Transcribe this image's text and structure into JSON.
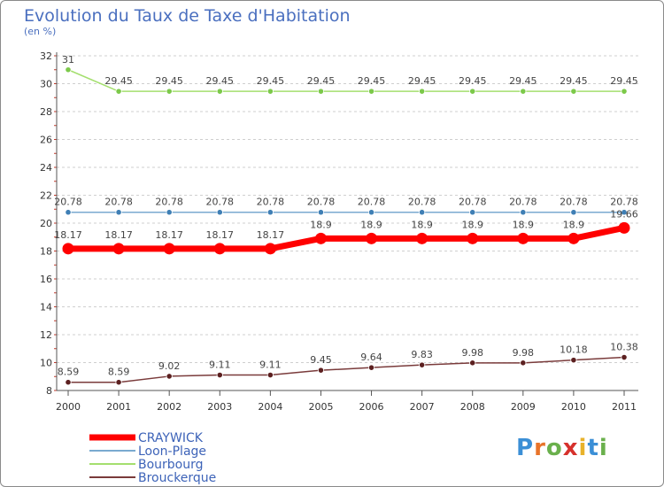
{
  "header": {
    "title": "Evolution du Taux de Taxe d'Habitation",
    "unit": "(en %)"
  },
  "logo": {
    "text": "Proxiti"
  },
  "chart_data": {
    "type": "line",
    "title": "Evolution du Taux de Taxe d'Habitation",
    "ylabel": "(en %)",
    "xlabel": "",
    "categories": [
      "2000",
      "2001",
      "2002",
      "2003",
      "2004",
      "2005",
      "2006",
      "2007",
      "2008",
      "2009",
      "2010",
      "2011"
    ],
    "ylim": [
      8,
      32
    ],
    "yticks": [
      8,
      10,
      12,
      14,
      16,
      18,
      20,
      22,
      24,
      26,
      28,
      30,
      32
    ],
    "grid": "horizontal-dashed",
    "legend_position": "bottom-left",
    "series": [
      {
        "name": "CRAYWICK",
        "color": "#ff0000",
        "emphasis": true,
        "values": [
          18.17,
          18.17,
          18.17,
          18.17,
          18.17,
          18.9,
          18.9,
          18.9,
          18.9,
          18.9,
          18.9,
          19.66
        ],
        "labels": [
          "18.17",
          "18.17",
          "18.17",
          "18.17",
          "18.17",
          "18.9",
          "18.9",
          "18.9",
          "18.9",
          "18.9",
          "18.9",
          "19.66"
        ]
      },
      {
        "name": "Loon-Plage",
        "color": "#7aaad0",
        "marker": "#3f7fb5",
        "values": [
          20.78,
          20.78,
          20.78,
          20.78,
          20.78,
          20.78,
          20.78,
          20.78,
          20.78,
          20.78,
          20.78,
          20.78
        ],
        "labels": [
          "20.78",
          "20.78",
          "20.78",
          "20.78",
          "20.78",
          "20.78",
          "20.78",
          "20.78",
          "20.78",
          "20.78",
          "20.78",
          "20.78"
        ]
      },
      {
        "name": "Bourbourg",
        "color": "#a4df6e",
        "marker": "#7cc94a",
        "values": [
          31,
          29.45,
          29.45,
          29.45,
          29.45,
          29.45,
          29.45,
          29.45,
          29.45,
          29.45,
          29.45,
          29.45
        ],
        "labels": [
          "31",
          "29.45",
          "29.45",
          "29.45",
          "29.45",
          "29.45",
          "29.45",
          "29.45",
          "29.45",
          "29.45",
          "29.45",
          "29.45"
        ]
      },
      {
        "name": "Brouckerque",
        "color": "#7a3b3b",
        "marker": "#5c2020",
        "values": [
          8.59,
          8.59,
          9.02,
          9.11,
          9.11,
          9.45,
          9.64,
          9.83,
          9.98,
          9.98,
          10.18,
          10.38
        ],
        "labels": [
          "8.59",
          "8.59",
          "9.02",
          "9.11",
          "9.11",
          "9.45",
          "9.64",
          "9.83",
          "9.98",
          "9.98",
          "10.18",
          "10.38"
        ]
      }
    ]
  }
}
